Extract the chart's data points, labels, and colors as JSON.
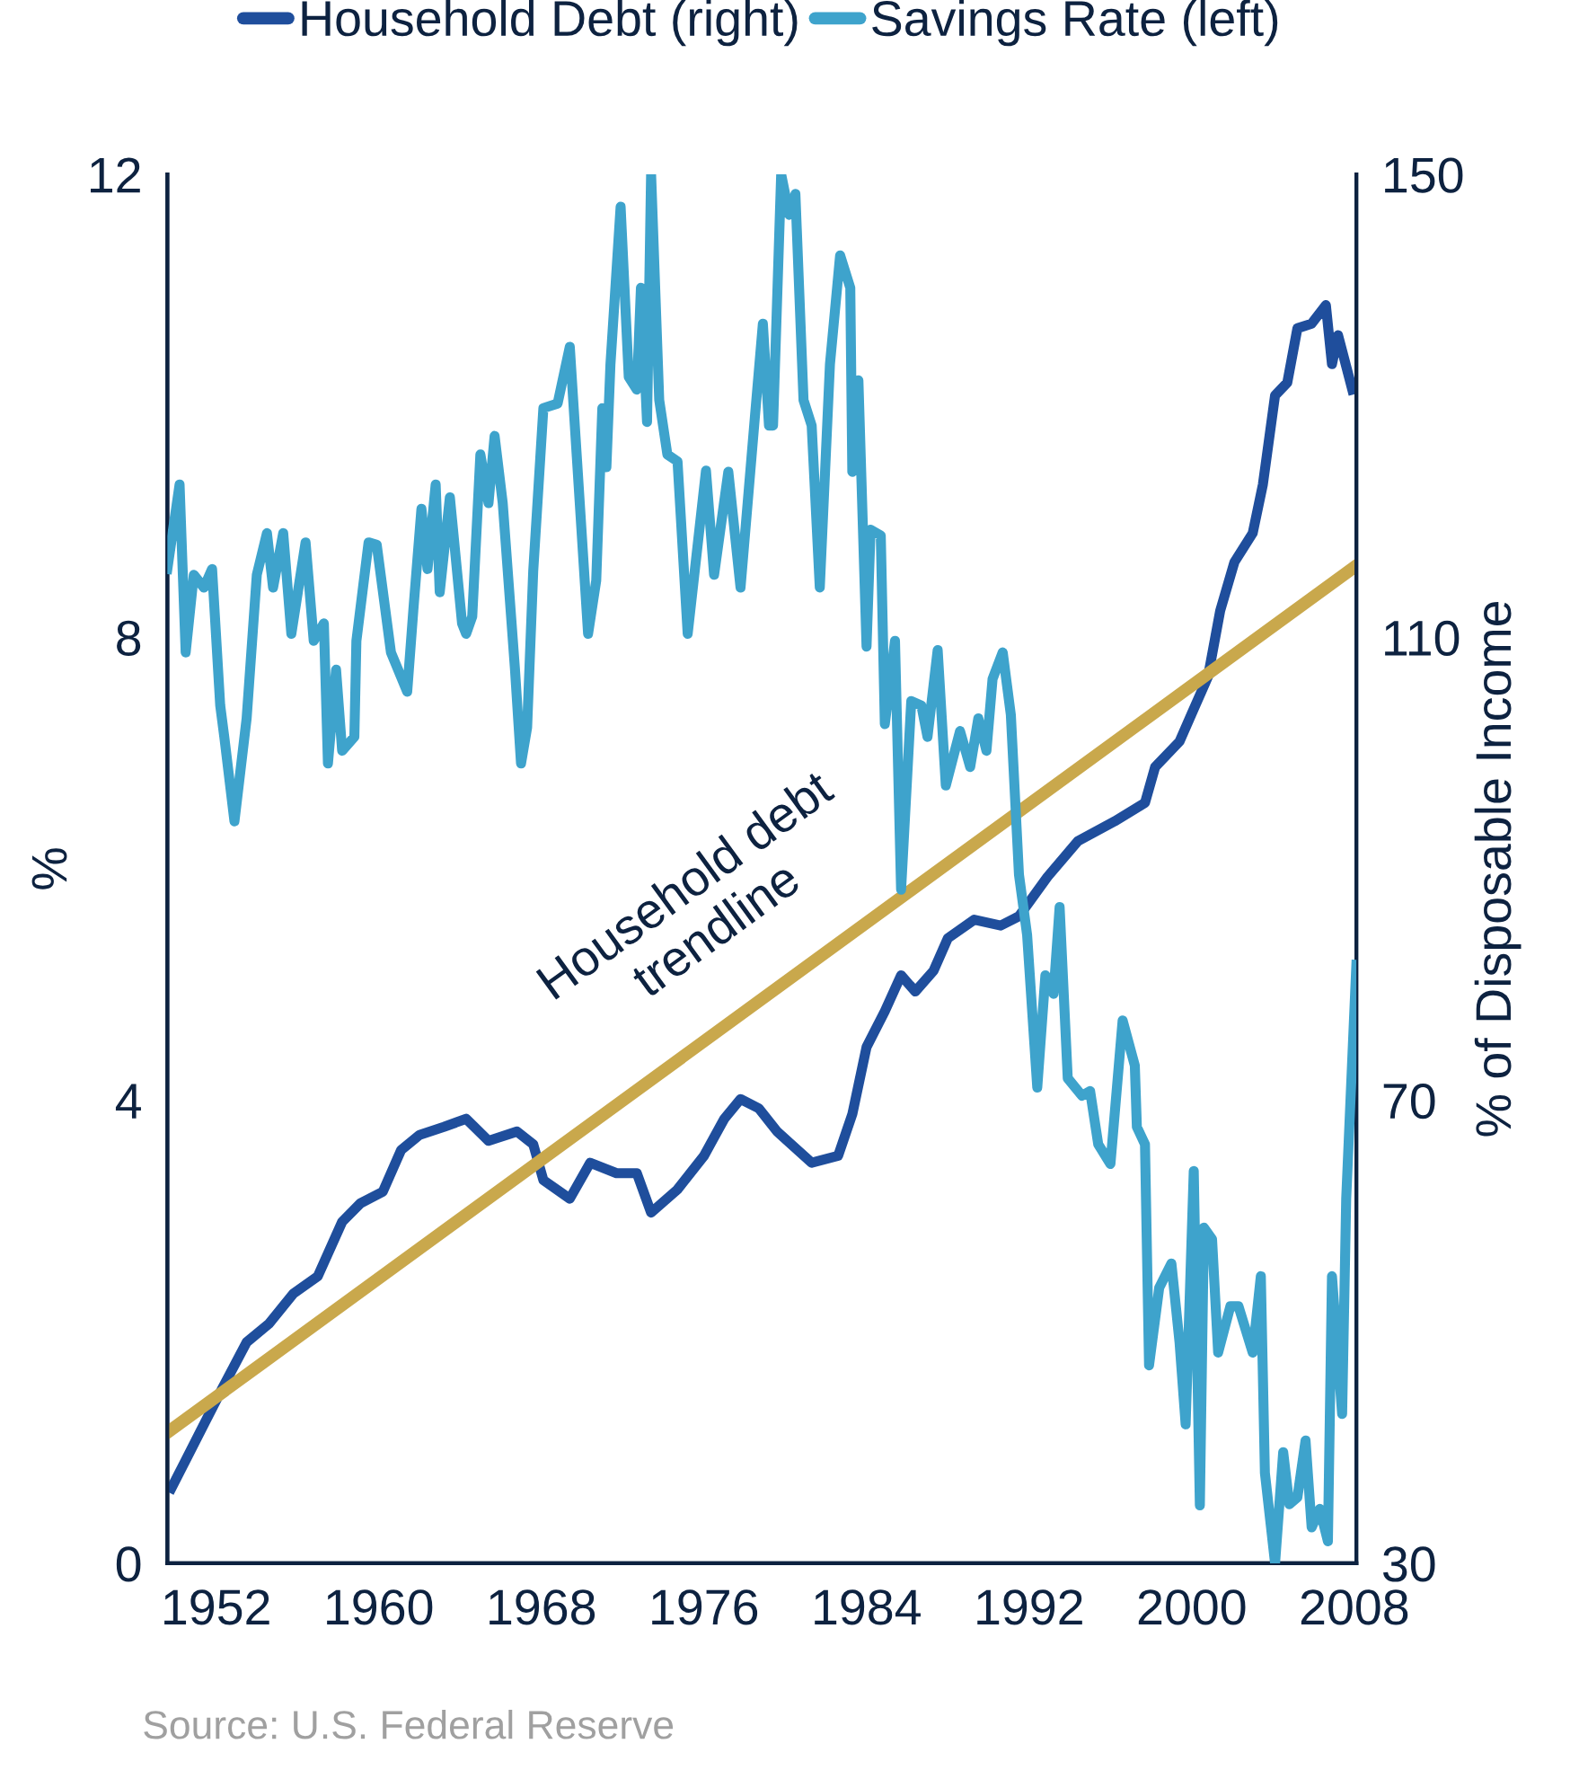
{
  "chart_data": {
    "type": "line",
    "ylabel": "%",
    "y2label": "% of Disposable Income",
    "xlim": [
      1949.6,
      2008.1
    ],
    "xticks": [
      1952,
      1960,
      1968,
      1976,
      1984,
      1992,
      2000,
      2008
    ],
    "ylim": [
      0,
      12
    ],
    "yticks": [
      0,
      4,
      8,
      12
    ],
    "y2lim": [
      30,
      150
    ],
    "y2ticks": [
      30,
      70,
      110,
      150
    ],
    "legend": "top",
    "grid": false,
    "marker": "none",
    "line_style": "solid",
    "annotations": [
      "Household debt\ntrendline",
      "Source: U.S. Federal Reserve"
    ],
    "series": [
      {
        "name": "Household Debt (right)",
        "color": "#1f4e9c",
        "axis": "y2",
        "x": [
          1949.8,
          1950.5,
          1951.4,
          1952.3,
          1953.5,
          1954.6,
          1955.8,
          1957.0,
          1958.2,
          1959.1,
          1960.2,
          1961.1,
          1962.0,
          1963.2,
          1964.3,
          1965.4,
          1966.8,
          1967.6,
          1968.1,
          1969.4,
          1970.4,
          1971.7,
          1972.7,
          1973.4,
          1974.7,
          1976.0,
          1977.0,
          1977.8,
          1978.7,
          1979.6,
          1981.3,
          1982.6,
          1983.3,
          1984.0,
          1984.9,
          1985.7,
          1986.4,
          1987.3,
          1988.0,
          1989.3,
          1990.6,
          1991.5,
          1992.9,
          1994.4,
          1996.2,
          1997.7,
          1998.2,
          1999.4,
          2000.0,
          2000.8,
          2001.4,
          2002.1,
          2003.0,
          2003.5,
          2004.1,
          2004.7,
          2005.2,
          2005.9,
          2006.6,
          2006.9,
          2007.2,
          2007.9
        ],
        "values": [
          36.5,
          38.9,
          42.0,
          45.1,
          49.1,
          50.7,
          53.3,
          54.8,
          59.5,
          61.1,
          62.1,
          65.7,
          67.0,
          67.7,
          68.4,
          66.5,
          67.3,
          66.2,
          63.1,
          61.5,
          64.6,
          63.7,
          63.7,
          60.3,
          62.3,
          65.2,
          68.4,
          70.1,
          69.3,
          67.3,
          64.6,
          65.2,
          68.8,
          74.6,
          77.7,
          80.8,
          79.4,
          81.2,
          84.0,
          85.6,
          85.1,
          85.9,
          89.3,
          92.4,
          94.1,
          95.7,
          98.8,
          101.0,
          103.4,
          106.6,
          112.3,
          116.5,
          119.0,
          123.2,
          130.9,
          132.0,
          136.7,
          137.1,
          138.7,
          133.6,
          136.1,
          131.4
        ]
      },
      {
        "name": "Savings Rate (left)",
        "color": "#3ea3cc",
        "x": [
          1949.6,
          1950.2,
          1950.5,
          1950.9,
          1951.4,
          1951.8,
          1952.2,
          1952.4,
          1952.9,
          1953.5,
          1954.0,
          1954.5,
          1954.8,
          1955.3,
          1955.7,
          1956.4,
          1956.8,
          1957.3,
          1957.5,
          1957.9,
          1958.2,
          1958.8,
          1958.9,
          1959.5,
          1959.9,
          1960.6,
          1961.4,
          1961.7,
          1962.1,
          1962.4,
          1962.8,
          1963.0,
          1963.5,
          1964.1,
          1964.3,
          1964.6,
          1965.0,
          1965.4,
          1965.7,
          1966.1,
          1966.7,
          1967.0,
          1967.3,
          1967.6,
          1968.1,
          1968.8,
          1969.4,
          1970.3,
          1970.7,
          1971.0,
          1971.2,
          1971.4,
          1971.9,
          1972.3,
          1972.7,
          1972.9,
          1973.2,
          1973.4,
          1973.8,
          1974.2,
          1974.7,
          1975.2,
          1976.1,
          1976.5,
          1977.2,
          1977.8,
          1978.5,
          1978.9,
          1979.2,
          1979.4,
          1979.8,
          1980.2,
          1980.5,
          1980.9,
          1981.3,
          1981.7,
          1982.2,
          1982.7,
          1983.2,
          1983.3,
          1983.6,
          1984.0,
          1984.2,
          1984.7,
          1984.9,
          1985.4,
          1985.7,
          1986.2,
          1986.7,
          1987.0,
          1987.5,
          1987.9,
          1988.6,
          1989.1,
          1989.5,
          1989.9,
          1990.2,
          1990.7,
          1991.1,
          1991.5,
          1991.9,
          1992.4,
          1992.8,
          1993.2,
          1993.5,
          1993.9,
          1994.6,
          1995.0,
          1995.4,
          1996.0,
          1996.6,
          1997.2,
          1997.3,
          1997.7,
          1997.9,
          1998.4,
          1999.0,
          1999.4,
          1999.7,
          2000.1,
          2000.4,
          2000.6,
          2001.0,
          2001.3,
          2001.9,
          2002.3,
          2003.0,
          2003.4,
          2003.6,
          2004.1,
          2004.5,
          2004.8,
          2005.2,
          2005.6,
          2005.9,
          2006.3,
          2006.7,
          2006.9,
          2007.4,
          2007.6,
          2008.1
        ],
        "values": [
          8.59,
          9.32,
          7.87,
          8.54,
          8.43,
          8.59,
          7.41,
          7.14,
          6.41,
          7.3,
          8.54,
          8.9,
          8.43,
          8.9,
          8.03,
          8.82,
          7.97,
          8.12,
          6.91,
          7.72,
          7.02,
          7.14,
          7.97,
          8.82,
          8.8,
          7.87,
          7.53,
          8.23,
          9.11,
          8.59,
          9.32,
          8.39,
          9.21,
          8.12,
          8.03,
          8.18,
          9.58,
          9.16,
          9.74,
          9.16,
          7.73,
          6.91,
          7.22,
          8.57,
          9.98,
          10.02,
          10.51,
          8.03,
          8.49,
          9.98,
          9.47,
          10.36,
          11.72,
          10.25,
          10.14,
          11.02,
          9.86,
          12.0,
          10.05,
          9.58,
          9.52,
          8.03,
          9.44,
          8.54,
          9.43,
          8.43,
          9.89,
          10.71,
          9.83,
          9.83,
          12.0,
          11.65,
          11.83,
          10.05,
          9.83,
          8.43,
          10.36,
          11.3,
          11.02,
          9.43,
          10.22,
          7.92,
          8.93,
          8.88,
          7.25,
          7.97,
          5.82,
          7.45,
          7.41,
          7.14,
          7.89,
          6.72,
          7.19,
          6.88,
          7.3,
          7.02,
          7.64,
          7.87,
          7.33,
          5.95,
          5.43,
          4.11,
          5.08,
          4.92,
          5.67,
          4.19,
          4.04,
          4.08,
          3.62,
          3.45,
          4.69,
          4.3,
          3.77,
          3.62,
          1.71,
          2.38,
          2.59,
          1.91,
          1.2,
          3.39,
          0.5,
          2.9,
          2.8,
          1.82,
          2.22,
          2.22,
          1.82,
          2.48,
          0.78,
          0.0,
          0.96,
          0.51,
          0.57,
          1.06,
          0.31,
          0.47,
          0.19,
          2.48,
          1.29,
          3.15,
          5.17
        ]
      },
      {
        "type": "line",
        "color": "#c9a84c",
        "axis": "y2",
        "x": [
          1949.6,
          2008.1
        ],
        "values": [
          41.3,
          116.2
        ]
      }
    ]
  }
}
